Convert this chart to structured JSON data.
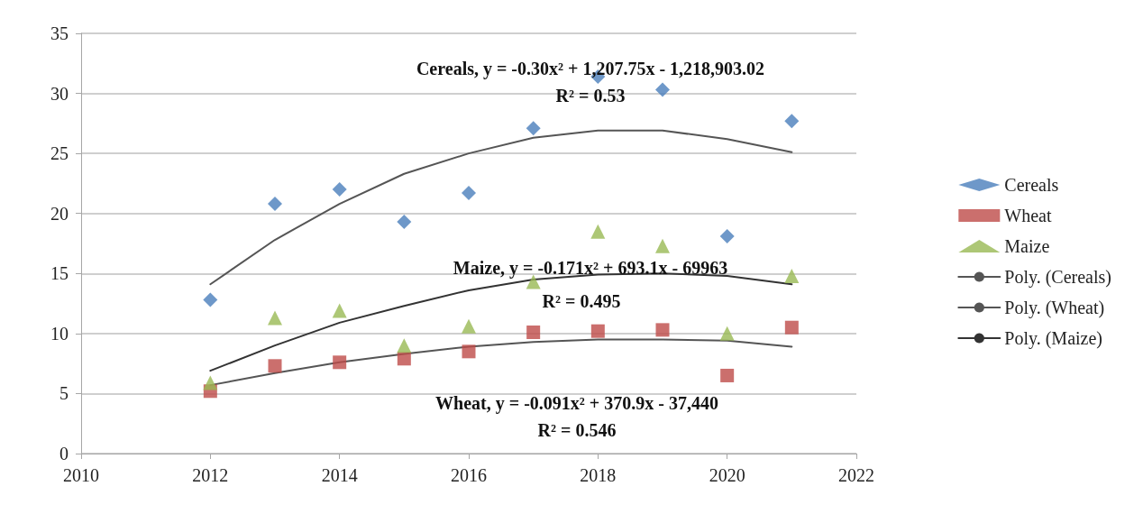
{
  "chart_data": {
    "type": "scatter",
    "x": [
      2012,
      2013,
      2014,
      2015,
      2016,
      2017,
      2018,
      2019,
      2020,
      2021
    ],
    "series": [
      {
        "name": "Cereals",
        "color": "#4a7ebb",
        "marker": "diamond",
        "values": [
          12.8,
          20.8,
          22.0,
          19.3,
          21.7,
          27.1,
          31.4,
          30.3,
          18.1,
          27.7
        ]
      },
      {
        "name": "Wheat",
        "color": "#be4b48",
        "marker": "square",
        "values": [
          5.2,
          7.3,
          7.6,
          7.9,
          8.5,
          10.1,
          10.2,
          10.3,
          6.5,
          10.5
        ]
      },
      {
        "name": "Maize",
        "color": "#98b954",
        "marker": "triangle",
        "values": [
          5.9,
          11.3,
          11.9,
          9.0,
          10.6,
          14.3,
          18.5,
          17.3,
          10.0,
          14.8
        ]
      },
      {
        "name": "Poly. (Cereals)",
        "type": "line",
        "color": "#555555",
        "marker": "none",
        "line_style": "solid",
        "values": [
          14.1,
          17.8,
          20.8,
          23.3,
          25.0,
          26.3,
          26.9,
          26.9,
          26.2,
          25.1
        ]
      },
      {
        "name": "Poly. (Wheat)",
        "type": "line",
        "color": "#555555",
        "marker": "none",
        "line_style": "solid",
        "values": [
          5.7,
          6.7,
          7.6,
          8.3,
          8.9,
          9.3,
          9.5,
          9.5,
          9.4,
          8.9
        ]
      },
      {
        "name": "Poly. (Maize)",
        "type": "line",
        "color": "#333333",
        "marker": "none",
        "line_style": "solid",
        "values": [
          6.9,
          9.0,
          10.9,
          12.3,
          13.6,
          14.5,
          14.9,
          15.0,
          14.8,
          14.1
        ]
      }
    ],
    "xlim": [
      2010,
      2022
    ],
    "xticks": [
      2010,
      2012,
      2014,
      2016,
      2018,
      2020,
      2022
    ],
    "ylim": [
      0,
      35
    ],
    "yticks": [
      0,
      5,
      10,
      15,
      20,
      25,
      30,
      35
    ],
    "grid": "y",
    "legend": "right",
    "annotations": [
      "Cereals, y = -0.30x² + 1,207.75x - 1,218,903.02",
      "R² = 0.53",
      "Maize, y = -0.171x² + 693.1x - 69963",
      "R² = 0.495",
      "Wheat, y = -0.091x² + 370.9x - 37,440",
      "R² = 0.546"
    ]
  }
}
